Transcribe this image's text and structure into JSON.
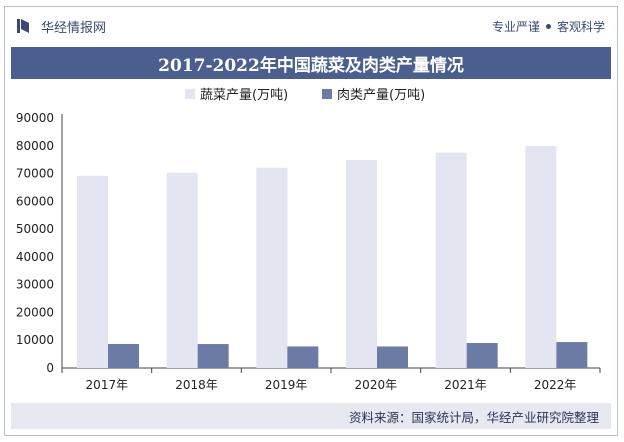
{
  "header": {
    "brand": "华经情报网",
    "slogan_left": "专业严谨",
    "slogan_right": "客观科学"
  },
  "footer": {
    "source": "资料来源：国家统计局，华经产业研究院整理"
  },
  "colors": {
    "vegetables": "#e3e6f0",
    "meat": "#6b7ba5",
    "title_bg": "#4a5f8f"
  },
  "chart_data": {
    "type": "bar",
    "title": "2017-2022年中国蔬菜及肉类产量情况",
    "categories": [
      "2017年",
      "2018年",
      "2019年",
      "2020年",
      "2021年",
      "2022年"
    ],
    "series": [
      {
        "name": "蔬菜产量(万吨)",
        "values": [
          69200,
          70300,
          72100,
          74900,
          77500,
          79900
        ]
      },
      {
        "name": "肉类产量(万吨)",
        "values": [
          8650,
          8620,
          7760,
          7750,
          8990,
          9330
        ]
      }
    ],
    "ylim": [
      0,
      90000
    ],
    "yticks": [
      "0",
      "10000",
      "20000",
      "30000",
      "40000",
      "50000",
      "60000",
      "70000",
      "80000",
      "90000"
    ],
    "legend_position": "top-center",
    "grid": false
  }
}
